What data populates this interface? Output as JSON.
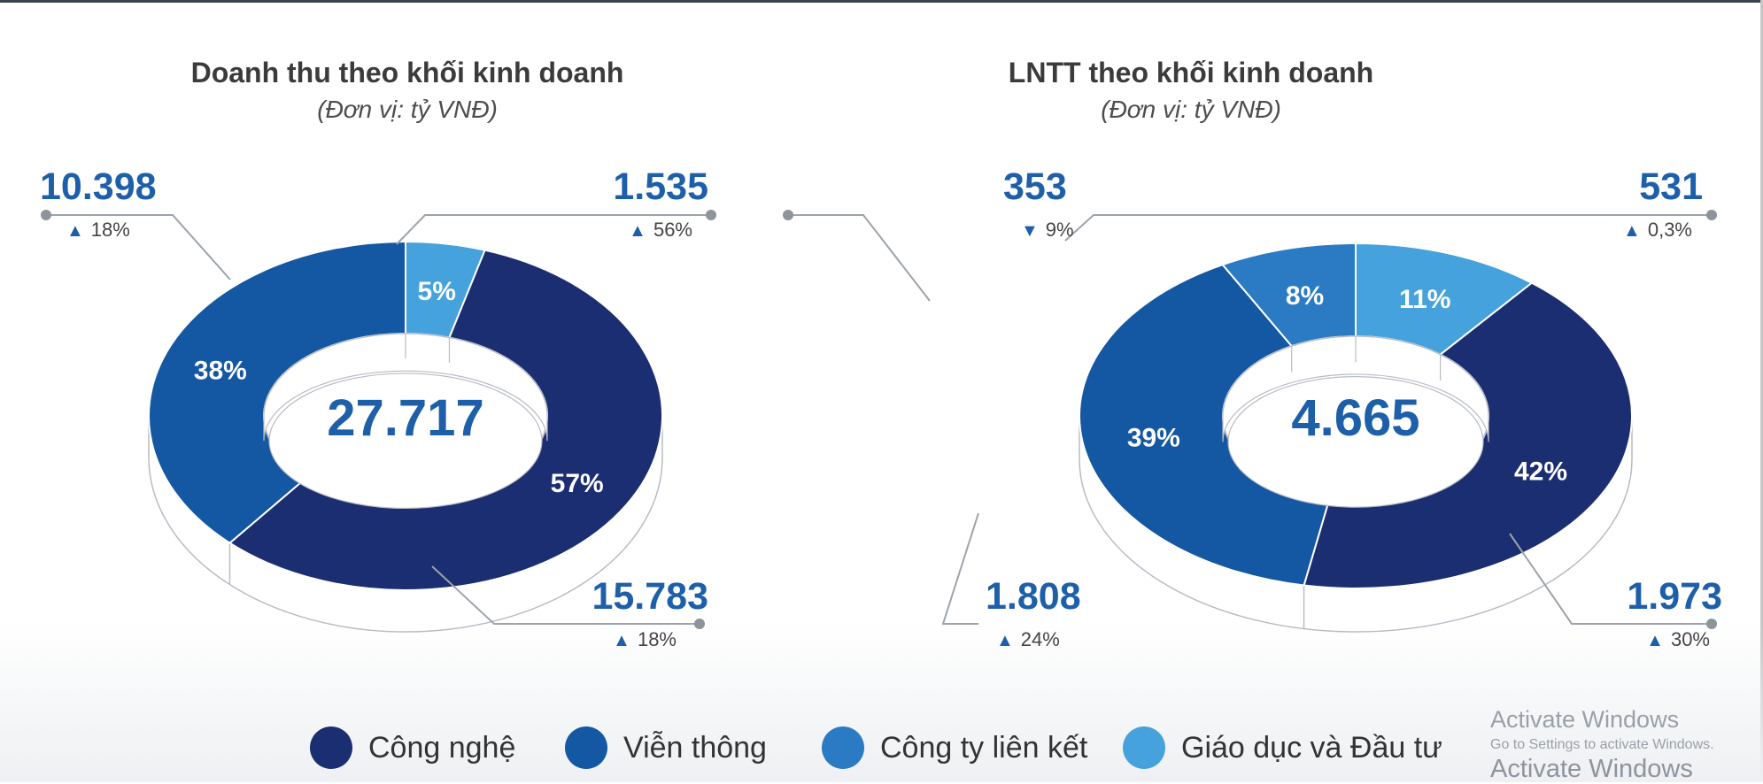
{
  "chart_data": [
    {
      "type": "pie",
      "title": "Doanh thu theo khối kinh doanh",
      "subtitle": "(Đơn vị: tỷ VNĐ)",
      "center_value": "27.717",
      "slices": [
        {
          "name": "Công nghệ",
          "percent": 57,
          "label": "57%",
          "value": "15.783",
          "change": "18%",
          "direction": "up",
          "color": "#1b2e72"
        },
        {
          "name": "Viễn thông",
          "percent": 38,
          "label": "38%",
          "value": "10.398",
          "change": "18%",
          "direction": "up",
          "color": "#1457a2"
        },
        {
          "name": "Giáo dục và Đầu tư",
          "percent": 5,
          "label": "5%",
          "value": "1.535",
          "change": "56%",
          "direction": "up",
          "color": "#45a2dc"
        }
      ]
    },
    {
      "type": "pie",
      "title": "LNTT theo khối kinh doanh",
      "subtitle": "(Đơn vị: tỷ VNĐ)",
      "center_value": "4.665",
      "slices": [
        {
          "name": "Công nghệ",
          "percent": 42,
          "label": "42%",
          "value": "1.973",
          "change": "30%",
          "direction": "up",
          "color": "#1b2e72"
        },
        {
          "name": "Viễn thông",
          "percent": 39,
          "label": "39%",
          "value": "1.808",
          "change": "24%",
          "direction": "up",
          "color": "#1457a2"
        },
        {
          "name": "Công ty liên kết",
          "percent": 8,
          "label": "8%",
          "value": "353",
          "change": "9%",
          "direction": "down",
          "color": "#2a7bc3"
        },
        {
          "name": "Giáo dục và Đầu tư",
          "percent": 11,
          "label": "11%",
          "value": "531",
          "change": "0,3%",
          "direction": "up",
          "color": "#45a2dc"
        }
      ]
    }
  ],
  "legend": [
    {
      "label": "Công nghệ",
      "color": "#1b2e72"
    },
    {
      "label": "Viễn thông",
      "color": "#1457a2"
    },
    {
      "label": "Công ty liên kết",
      "color": "#2a7bc3"
    },
    {
      "label": "Giáo dục và Đầu tư",
      "color": "#45a2dc"
    }
  ],
  "watermark": {
    "line1": "Activate Windows",
    "line2": "Go to Settings to activate Windows.",
    "line3": "Activate Windows"
  }
}
